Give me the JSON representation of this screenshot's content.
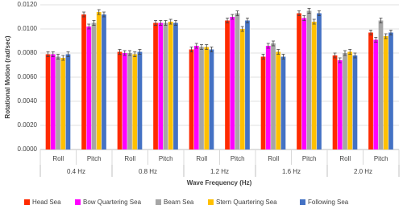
{
  "chart_data": {
    "type": "bar",
    "x_label": "Wave Frequency (Hz)",
    "y_label": "Rotational Motion (rad/sec)",
    "categories": [
      "Roll",
      "Pitch",
      "Roll",
      "Pitch",
      "Roll",
      "Pitch",
      "Roll",
      "Pitch",
      "Roll",
      "Pitch"
    ],
    "groups": [
      "0.4 Hz",
      "0.8 Hz",
      "1.2 Hz",
      "1.6 Hz",
      "2.0 Hz"
    ],
    "series": [
      {
        "name": "Head Sea",
        "color": "#ff2a00",
        "values": [
          0.0079,
          0.0112,
          0.0081,
          0.0105,
          0.0083,
          0.0107,
          0.0077,
          0.0113,
          0.0078,
          0.0097
        ],
        "errors": [
          0.0002,
          0.0002,
          0.0002,
          0.0002,
          0.0002,
          0.0002,
          0.0002,
          0.0002,
          0.0002,
          0.0002
        ]
      },
      {
        "name": "Bow Quartering Sea",
        "color": "#ff00ff",
        "values": [
          0.0079,
          0.0102,
          0.008,
          0.0105,
          0.0086,
          0.011,
          0.0086,
          0.0109,
          0.0074,
          0.0091
        ],
        "errors": [
          0.0002,
          0.0002,
          0.0002,
          0.0002,
          0.0002,
          0.0002,
          0.0002,
          0.0002,
          0.0002,
          0.0002
        ]
      },
      {
        "name": "Beam Sea",
        "color": "#a6a6a6",
        "values": [
          0.0077,
          0.0105,
          0.008,
          0.0105,
          0.0085,
          0.0113,
          0.0088,
          0.0115,
          0.008,
          0.0107
        ],
        "errors": [
          0.0002,
          0.0002,
          0.0002,
          0.0002,
          0.0002,
          0.0002,
          0.0002,
          0.0002,
          0.0002,
          0.0002
        ]
      },
      {
        "name": "Stern Quartering Sea",
        "color": "#ffc000",
        "values": [
          0.0076,
          0.0114,
          0.0079,
          0.0106,
          0.0085,
          0.01,
          0.0081,
          0.0106,
          0.0081,
          0.0094
        ],
        "errors": [
          0.0002,
          0.0002,
          0.0002,
          0.0002,
          0.0002,
          0.0002,
          0.0002,
          0.0002,
          0.0002,
          0.0002
        ]
      },
      {
        "name": "Following Sea",
        "color": "#4472c4",
        "values": [
          0.0079,
          0.0112,
          0.0081,
          0.0105,
          0.0083,
          0.0107,
          0.0077,
          0.0113,
          0.0078,
          0.0097
        ],
        "errors": [
          0.0002,
          0.0002,
          0.0002,
          0.0002,
          0.0002,
          0.0002,
          0.0002,
          0.0002,
          0.0002,
          0.0002
        ]
      }
    ],
    "ylim": [
      0,
      0.012
    ],
    "yticks": [
      {
        "value": 0,
        "label": "0.0000"
      },
      {
        "value": 0.002,
        "label": "0.0020"
      },
      {
        "value": 0.004,
        "label": "0.0040"
      },
      {
        "value": 0.006,
        "label": "0.0060"
      },
      {
        "value": 0.008,
        "label": "0.0080"
      },
      {
        "value": 0.01,
        "label": "0.0100"
      },
      {
        "value": 0.012,
        "label": "0.0120"
      }
    ],
    "grid": true,
    "legend": "bottom"
  }
}
